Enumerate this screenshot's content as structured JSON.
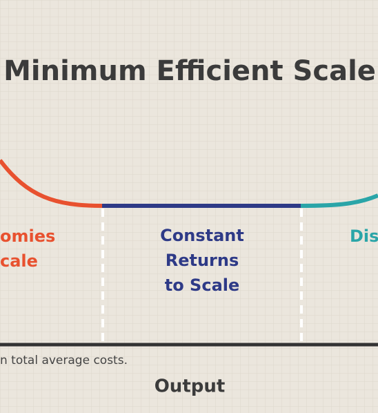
{
  "title": "Minimum Efficient Scale",
  "regions": {
    "left": {
      "lines": [
        "omies",
        "cale"
      ]
    },
    "center": {
      "lines": [
        "Constant",
        "Returns",
        "to Scale"
      ]
    },
    "right": {
      "lines": [
        "Dis"
      ]
    }
  },
  "footnote": "n total average costs.",
  "axis_label": "Output"
}
